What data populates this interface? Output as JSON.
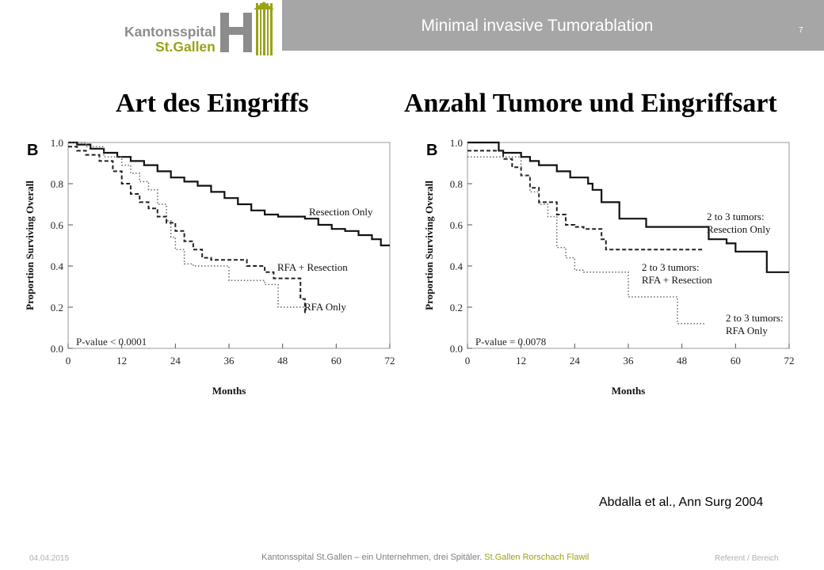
{
  "header": {
    "title": "Minimal invasive Tumorablation",
    "page_number": "7",
    "bar_color": "#a6a6a6"
  },
  "logo": {
    "line1": "Kantonsspital",
    "line2": "St.Gallen",
    "mark_letter": "H",
    "gray": "#8c8c8c",
    "green": "#9aa316"
  },
  "sections": {
    "left_title": "Art des Eingriffs",
    "right_title": "Anzahl Tumore und Eingriffsart"
  },
  "chart_data": [
    {
      "type": "line",
      "panel_label": "B",
      "xlabel": "Months",
      "ylabel": "Proportion Surviving Overall",
      "xlim": [
        0,
        72
      ],
      "ylim": [
        0,
        1
      ],
      "xticks": [
        "0",
        "12",
        "24",
        "36",
        "48",
        "60",
        "72"
      ],
      "yticks": [
        "0.0",
        "0.2",
        "0.4",
        "0.6",
        "0.8",
        "1.0"
      ],
      "annotation": "P-value < 0.0001",
      "series": [
        {
          "name": "Resection Only",
          "style": "solid",
          "x": [
            0,
            2,
            5,
            8,
            11,
            14,
            17,
            20,
            23,
            26,
            29,
            32,
            35,
            38,
            41,
            44,
            47,
            50,
            53,
            56,
            59,
            62,
            65,
            68,
            70,
            72
          ],
          "y": [
            1.0,
            0.99,
            0.97,
            0.95,
            0.93,
            0.91,
            0.89,
            0.86,
            0.83,
            0.81,
            0.79,
            0.76,
            0.73,
            0.7,
            0.67,
            0.65,
            0.64,
            0.64,
            0.63,
            0.6,
            0.58,
            0.57,
            0.55,
            0.53,
            0.5,
            0.5
          ]
        },
        {
          "name": "RFA + Resection",
          "style": "dashed",
          "x": [
            0,
            2,
            4,
            7,
            10,
            12,
            14,
            16,
            18,
            20,
            22,
            24,
            26,
            28,
            30,
            32,
            36,
            40,
            44,
            46,
            50,
            52,
            53
          ],
          "y": [
            0.98,
            0.96,
            0.94,
            0.91,
            0.86,
            0.8,
            0.75,
            0.71,
            0.68,
            0.64,
            0.61,
            0.57,
            0.52,
            0.48,
            0.44,
            0.43,
            0.43,
            0.4,
            0.37,
            0.34,
            0.34,
            0.24,
            0.16
          ]
        },
        {
          "name": "RFA Only",
          "style": "dotted",
          "x": [
            0,
            4,
            8,
            12,
            14,
            16,
            18,
            20,
            22,
            23,
            24,
            26,
            28,
            30,
            32,
            36,
            38,
            40,
            44,
            47,
            50,
            52,
            53
          ],
          "y": [
            1.0,
            0.98,
            0.93,
            0.89,
            0.85,
            0.81,
            0.77,
            0.7,
            0.62,
            0.54,
            0.48,
            0.41,
            0.4,
            0.4,
            0.4,
            0.33,
            0.33,
            0.33,
            0.31,
            0.2,
            0.2,
            0.2,
            0.18
          ]
        }
      ]
    },
    {
      "type": "line",
      "panel_label": "B",
      "xlabel": "Months",
      "ylabel": "Proportion Surviving Overall",
      "xlim": [
        0,
        72
      ],
      "ylim": [
        0,
        1
      ],
      "xticks": [
        "0",
        "12",
        "24",
        "36",
        "48",
        "60",
        "72"
      ],
      "yticks": [
        "0.0",
        "0.2",
        "0.4",
        "0.6",
        "0.8",
        "1.0"
      ],
      "annotation": "P-value = 0.0078",
      "series": [
        {
          "name": "2 to 3 tumors: Resection Only",
          "style": "solid",
          "x": [
            0,
            4,
            7,
            8,
            12,
            14,
            16,
            20,
            23,
            27,
            28,
            30,
            34,
            36,
            40,
            48,
            54,
            58,
            60,
            64,
            67,
            68,
            72
          ],
          "y": [
            1.0,
            1.0,
            0.96,
            0.95,
            0.93,
            0.91,
            0.89,
            0.86,
            0.83,
            0.8,
            0.77,
            0.71,
            0.63,
            0.63,
            0.59,
            0.59,
            0.53,
            0.51,
            0.47,
            0.47,
            0.37,
            0.37,
            0.37
          ]
        },
        {
          "name": "2 to 3 tumors: RFA + Resection",
          "style": "dashed",
          "x": [
            0,
            4,
            8,
            10,
            12,
            14,
            16,
            20,
            22,
            24,
            26,
            30,
            31,
            32,
            36,
            40,
            48,
            52,
            53
          ],
          "y": [
            0.96,
            0.96,
            0.92,
            0.88,
            0.84,
            0.78,
            0.71,
            0.65,
            0.6,
            0.59,
            0.58,
            0.53,
            0.48,
            0.48,
            0.48,
            0.48,
            0.48,
            0.48,
            0.48
          ]
        },
        {
          "name": "2 to 3 tumors: RFA Only",
          "style": "dotted",
          "x": [
            0,
            8,
            12,
            14,
            16,
            18,
            20,
            22,
            24,
            26,
            28,
            30,
            36,
            40,
            46,
            47,
            48,
            52,
            53
          ],
          "y": [
            0.93,
            0.93,
            0.84,
            0.76,
            0.7,
            0.64,
            0.49,
            0.44,
            0.38,
            0.37,
            0.37,
            0.37,
            0.25,
            0.25,
            0.25,
            0.12,
            0.12,
            0.12,
            0.12
          ]
        }
      ]
    }
  ],
  "citation": "Abdalla et al., Ann Surg 2004",
  "footer": {
    "date": "04.04.2015",
    "org_text": "Kantonsspital St.Gallen – ein Unternehmen, drei Spitäler.",
    "org_locations": "St.Gallen  Rorschach  Flawil",
    "referent": "Referent / Bereich"
  }
}
